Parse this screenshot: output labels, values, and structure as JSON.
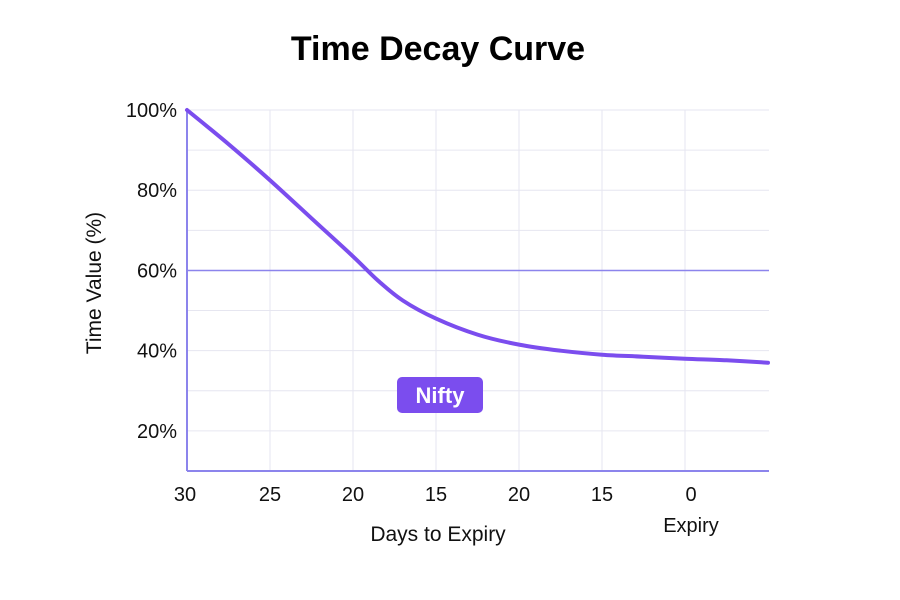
{
  "chart_data": {
    "type": "line",
    "title": "Time Decay Curve",
    "xlabel": "Days to Expiry",
    "ylabel": "Time Value (%)",
    "x_ticks": [
      "30",
      "25",
      "20",
      "15",
      "20",
      "15",
      "0"
    ],
    "x_extra_label": "Expiry",
    "y_ticks": [
      {
        "label": "100%",
        "value": 100
      },
      {
        "label": "80%",
        "value": 80
      },
      {
        "label": "60%",
        "value": 60
      },
      {
        "label": "40%",
        "value": 40
      },
      {
        "label": "20%",
        "value": 20
      }
    ],
    "ylim": [
      10,
      100
    ],
    "reference_line": {
      "value": 60
    },
    "series": [
      {
        "name": "Nifty",
        "color": "#7B4DEE",
        "x_index": [
          0,
          0.5,
          1,
          1.5,
          2,
          2.3,
          2.6,
          3,
          3.5,
          4,
          4.5,
          5,
          5.5,
          6,
          6.5,
          7
        ],
        "values": [
          100,
          91.5,
          82.5,
          73,
          63.5,
          57.5,
          52.5,
          48,
          44,
          41.5,
          40,
          39,
          38.5,
          38,
          37.6,
          37
        ]
      }
    ],
    "annotation": {
      "text": "Nifty",
      "color": "#7B4DEE"
    },
    "colors": {
      "axis": "#8c84ec",
      "grid": "#e6e6f0",
      "reference": "#8c84ec",
      "line": "#7B4DEE"
    }
  }
}
